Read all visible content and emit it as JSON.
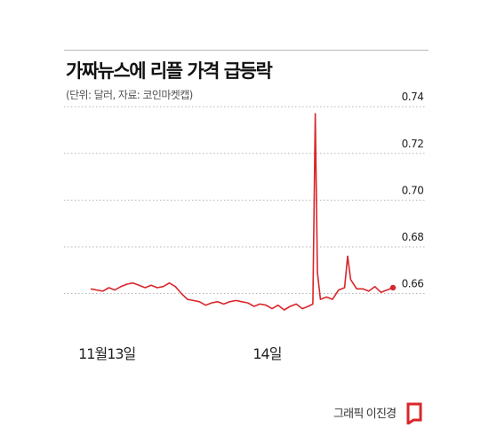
{
  "header": {
    "title": "가짜뉴스에 리플 가격 급등락",
    "subtitle": "(단위: 달러, 자료: 코인마켓캡)"
  },
  "footer": {
    "credit": "그래픽 이진경"
  },
  "colors": {
    "series": "#d9262b",
    "grid": "#b5b5b5",
    "text": "#222222",
    "logo": "#d9262b"
  },
  "chart_data": {
    "type": "line",
    "title": "가짜뉴스에 리플 가격 급등락",
    "subtitle": "(단위: 달러, 자료: 코인마켓캡)",
    "xlabel": "",
    "ylabel": "",
    "ylim": [
      0.645,
      0.745
    ],
    "xlim": [
      0,
      100
    ],
    "y_ticks": [
      0.74,
      0.72,
      0.7,
      0.68,
      0.66
    ],
    "y_tick_labels": [
      "0.74",
      "0.72",
      "0.70",
      "0.68",
      "0.66"
    ],
    "x_ticks": [
      {
        "x": 3,
        "label": "11월13일"
      },
      {
        "x": 56,
        "label": "14일"
      }
    ],
    "grid": true,
    "legend": "none",
    "series": [
      {
        "x": [
          0,
          2,
          4,
          6,
          8,
          10,
          12,
          14,
          16,
          18,
          20,
          22,
          24,
          26,
          28,
          30,
          32,
          34,
          36,
          38,
          40,
          42,
          44,
          46,
          48,
          50,
          52,
          54,
          56,
          58,
          60,
          62,
          64,
          66,
          68,
          70,
          72,
          73.5,
          74.3,
          75,
          76,
          78,
          80,
          82,
          84,
          85,
          86,
          88,
          90,
          92,
          94,
          96,
          98,
          100
        ],
        "y": [
          0.662,
          0.6615,
          0.661,
          0.6625,
          0.6615,
          0.663,
          0.664,
          0.6645,
          0.6635,
          0.6625,
          0.6635,
          0.6625,
          0.663,
          0.6645,
          0.663,
          0.66,
          0.6575,
          0.657,
          0.6565,
          0.655,
          0.656,
          0.6565,
          0.6555,
          0.6565,
          0.657,
          0.6565,
          0.656,
          0.6545,
          0.6555,
          0.655,
          0.6535,
          0.655,
          0.653,
          0.6545,
          0.6555,
          0.6535,
          0.6545,
          0.6555,
          0.737,
          0.669,
          0.6575,
          0.6585,
          0.6575,
          0.6615,
          0.6625,
          0.676,
          0.666,
          0.662,
          0.662,
          0.661,
          0.663,
          0.6605,
          0.6615,
          0.6625
        ]
      }
    ]
  }
}
